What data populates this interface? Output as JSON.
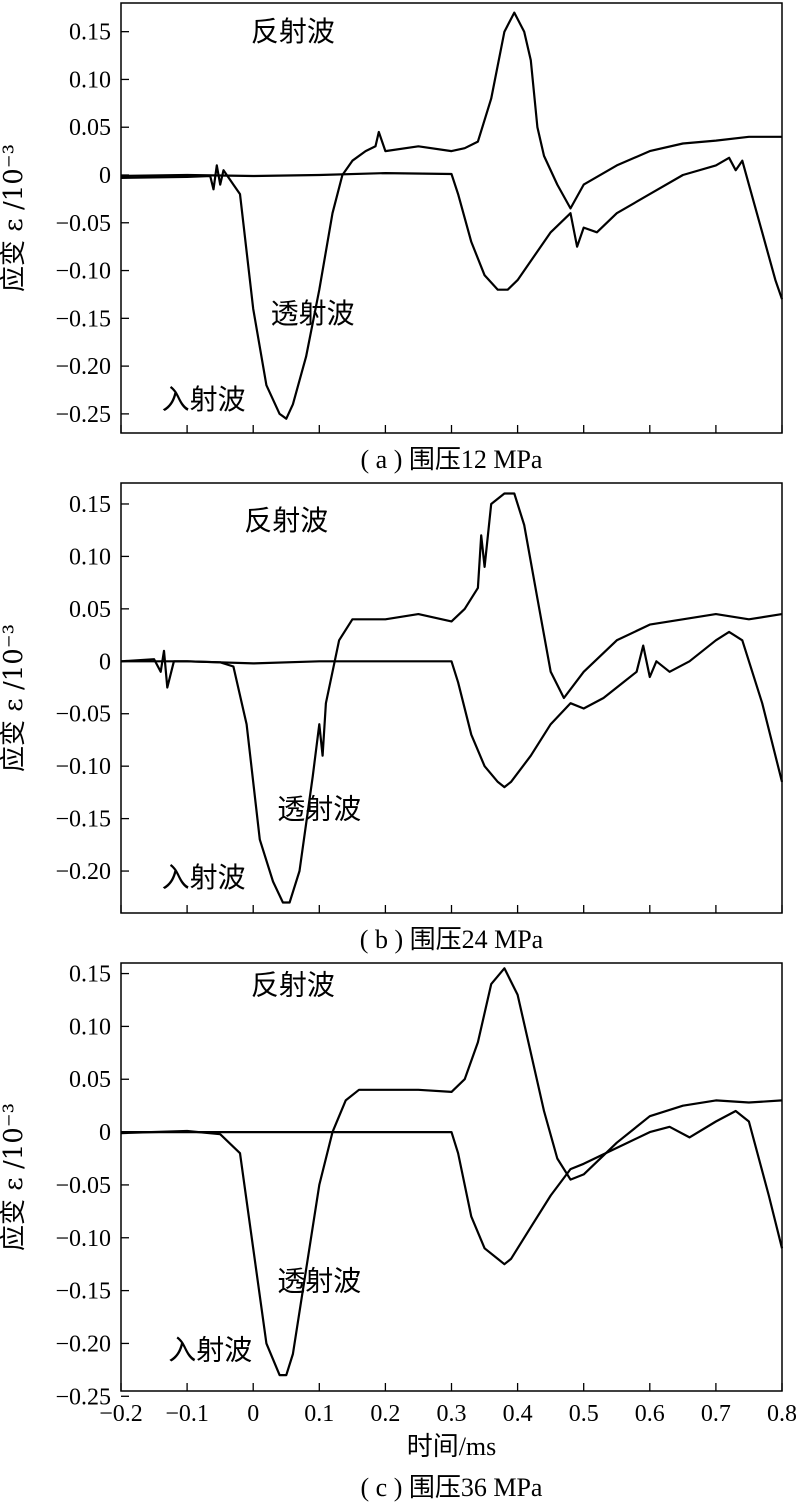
{
  "chart_data": [
    {
      "type": "line",
      "caption": "( a ) 围压12 MPa",
      "ylabel": "应变 ε /10⁻³",
      "xlim": [
        -0.2,
        0.8
      ],
      "ylim": [
        -0.27,
        0.18
      ],
      "yticks": [
        0.15,
        0.1,
        0.05,
        0,
        -0.05,
        -0.1,
        -0.15,
        -0.2,
        -0.25
      ],
      "ytick_labels": [
        "0.15",
        "0.10",
        "0.05",
        "0",
        "−0.05",
        "−0.10",
        "−0.15",
        "−0.20",
        "−0.25"
      ],
      "xticks": [
        -0.2,
        -0.1,
        0,
        0.1,
        0.2,
        0.3,
        0.4,
        0.5,
        0.6,
        0.7,
        0.8
      ],
      "annotations": [
        {
          "text": "反射波",
          "x": 0.06,
          "y": 0.14
        },
        {
          "text": "透射波",
          "x": 0.09,
          "y": -0.155
        },
        {
          "text": "入射波",
          "x": -0.075,
          "y": -0.245
        }
      ],
      "series": [
        {
          "x": [
            -0.2,
            -0.1,
            -0.065,
            -0.06,
            -0.055,
            -0.05,
            -0.045,
            -0.03,
            -0.02,
            -0.015,
            0,
            0.02,
            0.04,
            0.05,
            0.06,
            0.08,
            0.1,
            0.12,
            0.135,
            0.15,
            0.17,
            0.185,
            0.19,
            0.2,
            0.25,
            0.3,
            0.32,
            0.34,
            0.36,
            0.38,
            0.395,
            0.41,
            0.42,
            0.43,
            0.44,
            0.46,
            0.48,
            0.5,
            0.55,
            0.6,
            0.65,
            0.7,
            0.75,
            0.8
          ],
          "y": [
            -0.003,
            -0.002,
            -0.001,
            -0.015,
            0.01,
            -0.01,
            0.005,
            -0.01,
            -0.02,
            -0.05,
            -0.14,
            -0.22,
            -0.25,
            -0.255,
            -0.24,
            -0.19,
            -0.12,
            -0.04,
            0.0,
            0.015,
            0.025,
            0.03,
            0.045,
            0.025,
            0.03,
            0.025,
            0.028,
            0.035,
            0.08,
            0.15,
            0.17,
            0.15,
            0.12,
            0.05,
            0.02,
            -0.01,
            -0.035,
            -0.01,
            0.01,
            0.025,
            0.033,
            0.036,
            0.04,
            0.04
          ]
        },
        {
          "x": [
            -0.2,
            -0.1,
            0.0,
            0.1,
            0.2,
            0.3,
            0.31,
            0.33,
            0.35,
            0.37,
            0.385,
            0.4,
            0.42,
            0.45,
            0.48,
            0.49,
            0.5,
            0.52,
            0.55,
            0.6,
            0.65,
            0.7,
            0.72,
            0.73,
            0.74,
            0.75,
            0.77,
            0.79,
            0.8
          ],
          "y": [
            -0.001,
            0.0,
            -0.001,
            0.0,
            0.002,
            0.001,
            -0.02,
            -0.07,
            -0.105,
            -0.12,
            -0.12,
            -0.11,
            -0.09,
            -0.06,
            -0.04,
            -0.075,
            -0.055,
            -0.06,
            -0.04,
            -0.02,
            0.0,
            0.01,
            0.018,
            0.005,
            0.015,
            -0.01,
            -0.06,
            -0.11,
            -0.13
          ]
        }
      ]
    },
    {
      "type": "line",
      "caption": "( b ) 围压24 MPa",
      "ylabel": "应变 ε /10⁻³",
      "xlim": [
        -0.2,
        0.8
      ],
      "ylim": [
        -0.24,
        0.17
      ],
      "yticks": [
        0.15,
        0.1,
        0.05,
        0,
        -0.05,
        -0.1,
        -0.15,
        -0.2
      ],
      "ytick_labels": [
        "0.15",
        "0.10",
        "0.05",
        "0",
        "−0.05",
        "−0.10",
        "−0.15",
        "−0.20"
      ],
      "xticks": [
        -0.2,
        -0.1,
        0,
        0.1,
        0.2,
        0.3,
        0.4,
        0.5,
        0.6,
        0.7,
        0.8
      ],
      "annotations": [
        {
          "text": "反射波",
          "x": 0.05,
          "y": 0.125
        },
        {
          "text": "透射波",
          "x": 0.1,
          "y": -0.15
        },
        {
          "text": "入射波",
          "x": -0.075,
          "y": -0.215
        }
      ],
      "series": [
        {
          "x": [
            -0.2,
            -0.15,
            -0.14,
            -0.135,
            -0.13,
            -0.12,
            -0.1,
            -0.05,
            -0.03,
            -0.01,
            0.01,
            0.03,
            0.045,
            0.055,
            0.07,
            0.09,
            0.1,
            0.105,
            0.11,
            0.12,
            0.13,
            0.15,
            0.2,
            0.25,
            0.3,
            0.32,
            0.34,
            0.345,
            0.35,
            0.36,
            0.38,
            0.395,
            0.41,
            0.43,
            0.45,
            0.47,
            0.5,
            0.55,
            0.6,
            0.65,
            0.7,
            0.75,
            0.8
          ],
          "y": [
            0.0,
            0.002,
            -0.01,
            0.01,
            -0.025,
            0.0,
            0.0,
            -0.001,
            -0.005,
            -0.06,
            -0.17,
            -0.21,
            -0.23,
            -0.23,
            -0.2,
            -0.11,
            -0.06,
            -0.09,
            -0.04,
            -0.01,
            0.02,
            0.04,
            0.04,
            0.045,
            0.038,
            0.05,
            0.07,
            0.12,
            0.09,
            0.15,
            0.16,
            0.16,
            0.13,
            0.06,
            -0.01,
            -0.035,
            -0.01,
            0.02,
            0.035,
            0.04,
            0.045,
            0.04,
            0.045
          ]
        },
        {
          "x": [
            -0.2,
            -0.1,
            0.0,
            0.1,
            0.2,
            0.3,
            0.31,
            0.33,
            0.35,
            0.37,
            0.38,
            0.39,
            0.42,
            0.45,
            0.48,
            0.5,
            0.53,
            0.56,
            0.58,
            0.59,
            0.6,
            0.61,
            0.63,
            0.66,
            0.7,
            0.72,
            0.74,
            0.77,
            0.8
          ],
          "y": [
            0.0,
            0.0,
            -0.002,
            0.0,
            0.0,
            0.0,
            -0.02,
            -0.07,
            -0.1,
            -0.115,
            -0.12,
            -0.115,
            -0.09,
            -0.06,
            -0.04,
            -0.045,
            -0.035,
            -0.02,
            -0.01,
            0.015,
            -0.015,
            0.0,
            -0.01,
            0.0,
            0.02,
            0.028,
            0.02,
            -0.04,
            -0.115
          ]
        }
      ]
    },
    {
      "type": "line",
      "caption": "( c ) 围压36 MPa",
      "ylabel": "应变 ε /10⁻³",
      "xlabel": "时间/ms",
      "xlim": [
        -0.2,
        0.8
      ],
      "ylim": [
        -0.245,
        0.16
      ],
      "yticks": [
        0.15,
        0.1,
        0.05,
        0,
        -0.05,
        -0.1,
        -0.15,
        -0.2,
        -0.25
      ],
      "ytick_labels": [
        "0.15",
        "0.10",
        "0.05",
        "0",
        "−0.05",
        "−0.10",
        "−0.15",
        "−0.20",
        "−0.25"
      ],
      "xticks": [
        -0.2,
        -0.1,
        0,
        0.1,
        0.2,
        0.3,
        0.4,
        0.5,
        0.6,
        0.7,
        0.8
      ],
      "xtick_labels": [
        "−0.2",
        "−0.1",
        "0",
        "0.1",
        "0.2",
        "0.3",
        "0.4",
        "0.5",
        "0.6",
        "0.7",
        "0.8"
      ],
      "annotations": [
        {
          "text": "反射波",
          "x": 0.06,
          "y": 0.13
        },
        {
          "text": "透射波",
          "x": 0.1,
          "y": -0.15
        },
        {
          "text": "入射波",
          "x": -0.065,
          "y": -0.215
        }
      ],
      "series": [
        {
          "x": [
            -0.2,
            -0.1,
            -0.05,
            -0.02,
            0.0,
            0.02,
            0.04,
            0.05,
            0.06,
            0.08,
            0.1,
            0.12,
            0.14,
            0.16,
            0.2,
            0.25,
            0.3,
            0.32,
            0.34,
            0.36,
            0.38,
            0.4,
            0.42,
            0.44,
            0.46,
            0.48,
            0.5,
            0.55,
            0.6,
            0.65,
            0.7,
            0.75,
            0.8
          ],
          "y": [
            -0.001,
            0.001,
            -0.002,
            -0.02,
            -0.11,
            -0.2,
            -0.23,
            -0.23,
            -0.21,
            -0.13,
            -0.05,
            0.0,
            0.03,
            0.04,
            0.04,
            0.04,
            0.038,
            0.05,
            0.085,
            0.14,
            0.155,
            0.13,
            0.075,
            0.02,
            -0.025,
            -0.045,
            -0.04,
            -0.01,
            0.015,
            0.025,
            0.03,
            0.028,
            0.03
          ]
        },
        {
          "x": [
            -0.2,
            -0.1,
            0.0,
            0.1,
            0.2,
            0.3,
            0.31,
            0.33,
            0.35,
            0.37,
            0.38,
            0.39,
            0.42,
            0.45,
            0.48,
            0.5,
            0.55,
            0.6,
            0.63,
            0.66,
            0.7,
            0.73,
            0.75,
            0.78,
            0.8
          ],
          "y": [
            0.0,
            0.0,
            0.0,
            0.0,
            0.0,
            0.0,
            -0.02,
            -0.08,
            -0.11,
            -0.12,
            -0.125,
            -0.12,
            -0.09,
            -0.06,
            -0.035,
            -0.03,
            -0.015,
            0.0,
            0.005,
            -0.005,
            0.01,
            0.02,
            0.01,
            -0.06,
            -0.11
          ]
        }
      ]
    }
  ]
}
